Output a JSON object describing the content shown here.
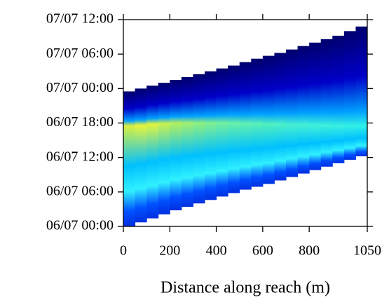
{
  "chart_data": {
    "type": "time-span-heatmap",
    "xlabel": "Distance along reach (m)",
    "bins": [
      0,
      50,
      100,
      150,
      200,
      250,
      300,
      350,
      400,
      450,
      500,
      550,
      600,
      650,
      700,
      750,
      800,
      850,
      900,
      950,
      1000,
      1050
    ],
    "start": [
      0,
      0.7,
      1.4,
      2.1,
      2.8,
      3.4,
      4.0,
      4.6,
      5.2,
      5.8,
      6.4,
      6.9,
      7.4,
      8.0,
      8.6,
      9.2,
      9.8,
      10.4,
      11.0,
      11.6,
      12.2
    ],
    "end": [
      23.5,
      24.0,
      24.5,
      25.0,
      25.5,
      26.0,
      26.5,
      27.0,
      27.5,
      28.0,
      28.6,
      29.2,
      29.7,
      30.2,
      30.8,
      31.4,
      32.0,
      32.6,
      33.2,
      34.0,
      34.8
    ],
    "peak": [
      17.5,
      17.6,
      17.8,
      17.9,
      18.0,
      18.0,
      18.0,
      18.0,
      18.0,
      18.0,
      17.9,
      17.9,
      17.8,
      17.8,
      17.7,
      17.7,
      17.6,
      17.6,
      17.5,
      17.5,
      17.5
    ],
    "peak_color": [
      "#d8f040",
      "#e6f53a",
      "#e0f440",
      "#c8f250",
      "#b4f060",
      "#a0f070",
      "#90f080",
      "#80f090",
      "#74f0a0",
      "#68f0a8",
      "#60f0b0",
      "#58f0b8",
      "#50f0c0",
      "#4cf0c8",
      "#48f0d0",
      "#44f0d4",
      "#40f0d8",
      "#3cf0dc",
      "#38f0e0",
      "#34f0e4",
      "#30f0e8"
    ],
    "colors": {
      "top": "#00006e",
      "upper": "#0000c8",
      "shoulder": "#00a0ff",
      "lower": "#00c0ff",
      "band": "#30f0ff",
      "base": "#0050ff",
      "bottom": "#0030e0"
    },
    "xlim": [
      0,
      1050
    ],
    "xticks": [
      0,
      200,
      400,
      600,
      800,
      1050
    ],
    "ylim": [
      0,
      36
    ],
    "yticks": [
      {
        "value": 0,
        "label": "06/07 00:00"
      },
      {
        "value": 6,
        "label": "06/07 06:00"
      },
      {
        "value": 12,
        "label": "06/07 12:00"
      },
      {
        "value": 18,
        "label": "06/07 18:00"
      },
      {
        "value": 24,
        "label": "07/07 00:00"
      },
      {
        "value": 30,
        "label": "07/07 06:00"
      },
      {
        "value": 36,
        "label": "07/07 12:00"
      }
    ]
  }
}
